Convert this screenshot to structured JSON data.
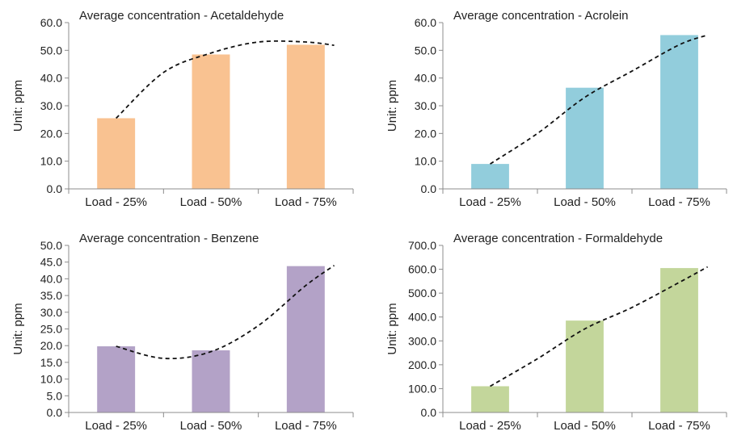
{
  "chart_data": [
    {
      "type": "bar",
      "title": "Average concentration - Acetaldehyde",
      "ylabel": "Unit: ppm",
      "xlabel": "",
      "categories": [
        "Load - 25%",
        "Load - 50%",
        "Load - 75%"
      ],
      "values": [
        25.5,
        48.5,
        52.0
      ],
      "yticks": [
        "0.0",
        "10.0",
        "20.0",
        "30.0",
        "40.0",
        "50.0",
        "60.0"
      ],
      "ylim": [
        0,
        60
      ],
      "color": "#F9C291",
      "trend": [
        [
          0.0,
          25.5
        ],
        [
          0.5,
          42.0
        ],
        [
          1.0,
          49.0
        ],
        [
          1.5,
          53.0
        ],
        [
          2.0,
          53.0
        ],
        [
          2.3,
          51.8
        ]
      ]
    },
    {
      "type": "bar",
      "title": "Average concentration - Acrolein",
      "ylabel": "Unit: ppm",
      "xlabel": "",
      "categories": [
        "Load - 25%",
        "Load - 50%",
        "Load - 75%"
      ],
      "values": [
        9.0,
        36.5,
        55.5
      ],
      "yticks": [
        "0.0",
        "10.0",
        "20.0",
        "30.0",
        "40.0",
        "50.0",
        "60.0"
      ],
      "ylim": [
        0,
        60
      ],
      "color": "#92CDDC",
      "trend": [
        [
          0.0,
          9.0
        ],
        [
          0.5,
          20.0
        ],
        [
          1.0,
          33.0
        ],
        [
          1.5,
          42.5
        ],
        [
          2.0,
          52.0
        ],
        [
          2.3,
          55.5
        ]
      ]
    },
    {
      "type": "bar",
      "title": "Average concentration - Benzene",
      "ylabel": "Unit: ppm",
      "xlabel": "",
      "categories": [
        "Load - 25%",
        "Load - 50%",
        "Load - 75%"
      ],
      "values": [
        19.8,
        18.6,
        43.8
      ],
      "yticks": [
        "0.0",
        "5.0",
        "10.0",
        "15.0",
        "20.0",
        "25.0",
        "30.0",
        "35.0",
        "40.0",
        "45.0",
        "50.0"
      ],
      "ylim": [
        0,
        50
      ],
      "color": "#B3A2C7",
      "trend": [
        [
          0.0,
          19.8
        ],
        [
          0.5,
          16.2
        ],
        [
          1.0,
          18.2
        ],
        [
          1.5,
          26.0
        ],
        [
          2.0,
          38.0
        ],
        [
          2.3,
          44.0
        ]
      ]
    },
    {
      "type": "bar",
      "title": "Average concentration - Formaldehyde",
      "ylabel": "Unit: ppm",
      "xlabel": "",
      "categories": [
        "Load - 25%",
        "Load - 50%",
        "Load - 75%"
      ],
      "values": [
        110.0,
        385.0,
        605.0
      ],
      "yticks": [
        "0.0",
        "100.0",
        "200.0",
        "300.0",
        "400.0",
        "500.0",
        "600.0",
        "700.0"
      ],
      "ylim": [
        0,
        700
      ],
      "color": "#C3D69B",
      "trend": [
        [
          0.0,
          110.0
        ],
        [
          0.5,
          225.0
        ],
        [
          1.0,
          350.0
        ],
        [
          1.5,
          440.0
        ],
        [
          2.0,
          545.0
        ],
        [
          2.3,
          610.0
        ]
      ]
    }
  ]
}
